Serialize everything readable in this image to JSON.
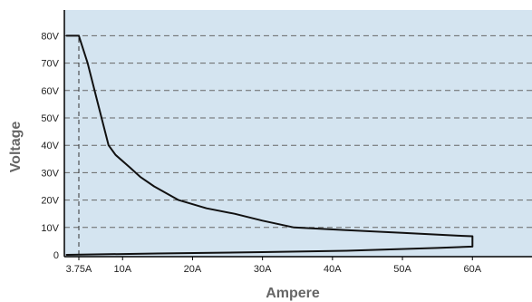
{
  "chart_data": {
    "type": "line",
    "title": "",
    "xlabel": "Ampere",
    "ylabel": "Voltage",
    "xlim": [
      2,
      65
    ],
    "ylim": [
      0,
      80
    ],
    "x_ticks": [
      {
        "value": 3.75,
        "label": "3.75A"
      },
      {
        "value": 10,
        "label": "10A"
      },
      {
        "value": 20,
        "label": "20A"
      },
      {
        "value": 30,
        "label": "30A"
      },
      {
        "value": 40,
        "label": "40A"
      },
      {
        "value": 50,
        "label": "50A"
      },
      {
        "value": 60,
        "label": "60A"
      }
    ],
    "y_ticks": [
      {
        "value": 0,
        "label": "0"
      },
      {
        "value": 10,
        "label": "10V"
      },
      {
        "value": 20,
        "label": "20V"
      },
      {
        "value": 30,
        "label": "30V"
      },
      {
        "value": 40,
        "label": "40V"
      },
      {
        "value": 50,
        "label": "50V"
      },
      {
        "value": 60,
        "label": "60V"
      },
      {
        "value": 70,
        "label": "70V"
      },
      {
        "value": 80,
        "label": "80V"
      }
    ],
    "grid": "horizontal-dashed",
    "background_color": "#d4e4f0",
    "line_color": "#111111",
    "grid_color": "#666666",
    "series": [
      {
        "values": [
          [
            2,
            80
          ],
          [
            3.75,
            80
          ],
          [
            5,
            70
          ],
          [
            6.5,
            55
          ],
          [
            8,
            40
          ],
          [
            9,
            36.5
          ],
          [
            11,
            32
          ],
          [
            12.5,
            28.5
          ],
          [
            14.5,
            25
          ],
          [
            18,
            20
          ],
          [
            22,
            17
          ],
          [
            26,
            15
          ],
          [
            30,
            12.5
          ],
          [
            34.5,
            10
          ],
          [
            42,
            9
          ],
          [
            50,
            8
          ],
          [
            58,
            7
          ],
          [
            60,
            6.8
          ],
          [
            60,
            3
          ],
          [
            55,
            2.5
          ],
          [
            42,
            1.5
          ],
          [
            30,
            1
          ],
          [
            15,
            0.5
          ],
          [
            2,
            0
          ]
        ]
      }
    ],
    "reference_lines": [
      {
        "x": 3.75,
        "from_y": 0,
        "to_y": 80,
        "style": "dashed"
      }
    ]
  }
}
